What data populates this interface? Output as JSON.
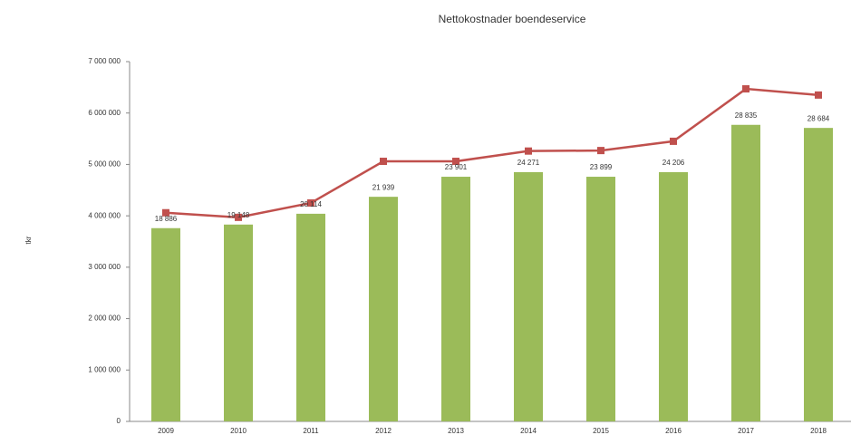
{
  "chart_data": {
    "type": "bar_line",
    "title": "Nettokostnader boendeservice",
    "ylabel": "tkr",
    "categories": [
      "2009",
      "2010",
      "2011",
      "2012",
      "2013",
      "2014",
      "2015",
      "2016",
      "2017",
      "2018"
    ],
    "series": [
      {
        "type": "bar",
        "color": "#9bbb59",
        "values": [
          3760000,
          3830000,
          4040000,
          4370000,
          4760000,
          4850000,
          4760000,
          4850000,
          5770000,
          5710000
        ]
      },
      {
        "type": "line",
        "color": "#c0504d",
        "values": [
          4060000,
          3970000,
          4250000,
          5060000,
          5060000,
          5260000,
          5270000,
          5450000,
          6470000,
          6350000
        ]
      }
    ],
    "annotations": [
      "18 886",
      "19 148",
      "20 114",
      "21 939",
      "23 901",
      "24 271",
      "23 899",
      "24 206",
      "28 835",
      "28 684"
    ],
    "ylim": [
      0,
      7000000
    ],
    "yticks": [
      0,
      {
        "value": 1000000,
        "label": "1 000 000"
      },
      {
        "value": 2000000,
        "label": "2 000 000"
      },
      {
        "value": 3000000,
        "label": "3 000 000"
      },
      {
        "value": 4000000,
        "label": "4 000 000"
      },
      {
        "value": 5000000,
        "label": "5 000 000"
      },
      {
        "value": 6000000,
        "label": "6 000 000"
      },
      {
        "value": 7000000,
        "label": "7 000 000"
      }
    ],
    "grid": false
  }
}
